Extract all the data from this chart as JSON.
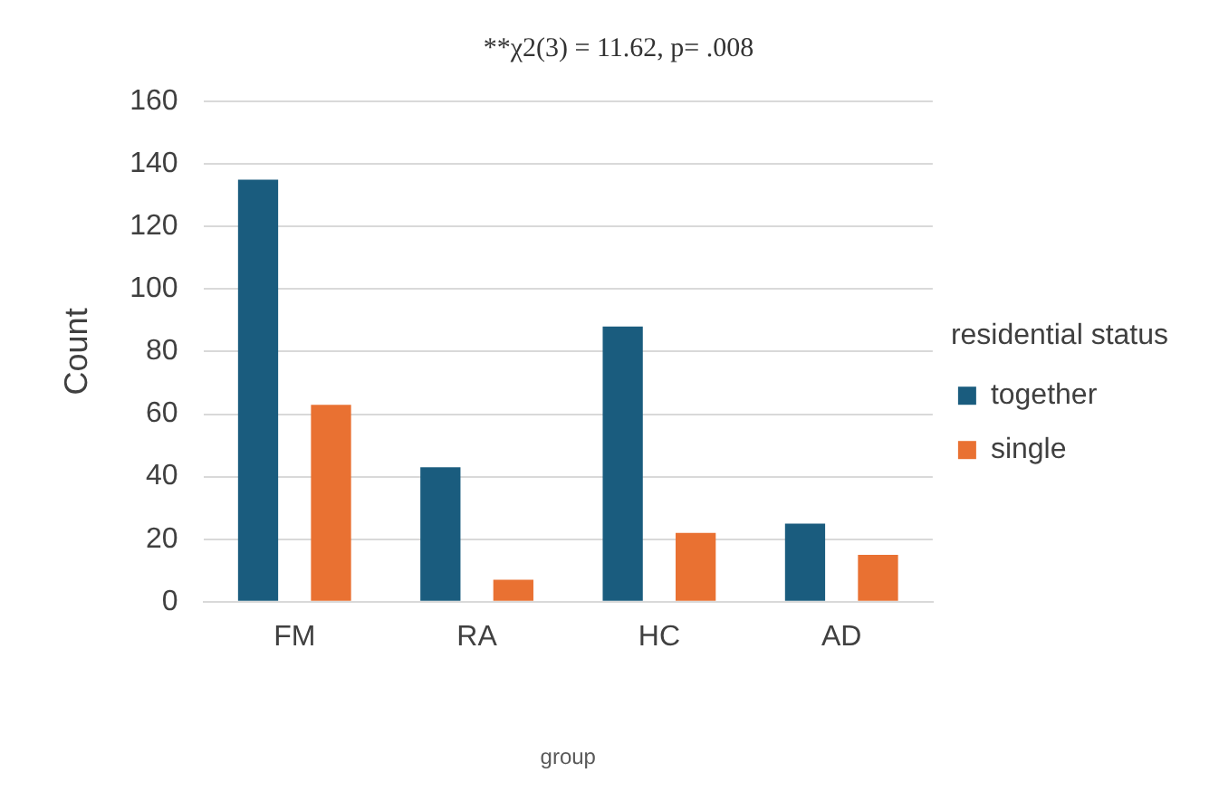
{
  "chart_data": {
    "type": "bar",
    "title": "**χ2(3) = 11.62, p= .008",
    "xlabel": "group",
    "ylabel": "Count",
    "legend_title": "residential status",
    "categories": [
      "FM",
      "RA",
      "HC",
      "AD"
    ],
    "series": [
      {
        "name": "together",
        "color": "#1a5c7e",
        "values": [
          135,
          43,
          88,
          25
        ]
      },
      {
        "name": "single",
        "color": "#e97132",
        "values": [
          63,
          7,
          22,
          15
        ]
      }
    ],
    "ylim": [
      0,
      160
    ],
    "yticks": [
      0,
      20,
      40,
      60,
      80,
      100,
      120,
      140,
      160
    ],
    "grid": "y",
    "legend": "right"
  }
}
